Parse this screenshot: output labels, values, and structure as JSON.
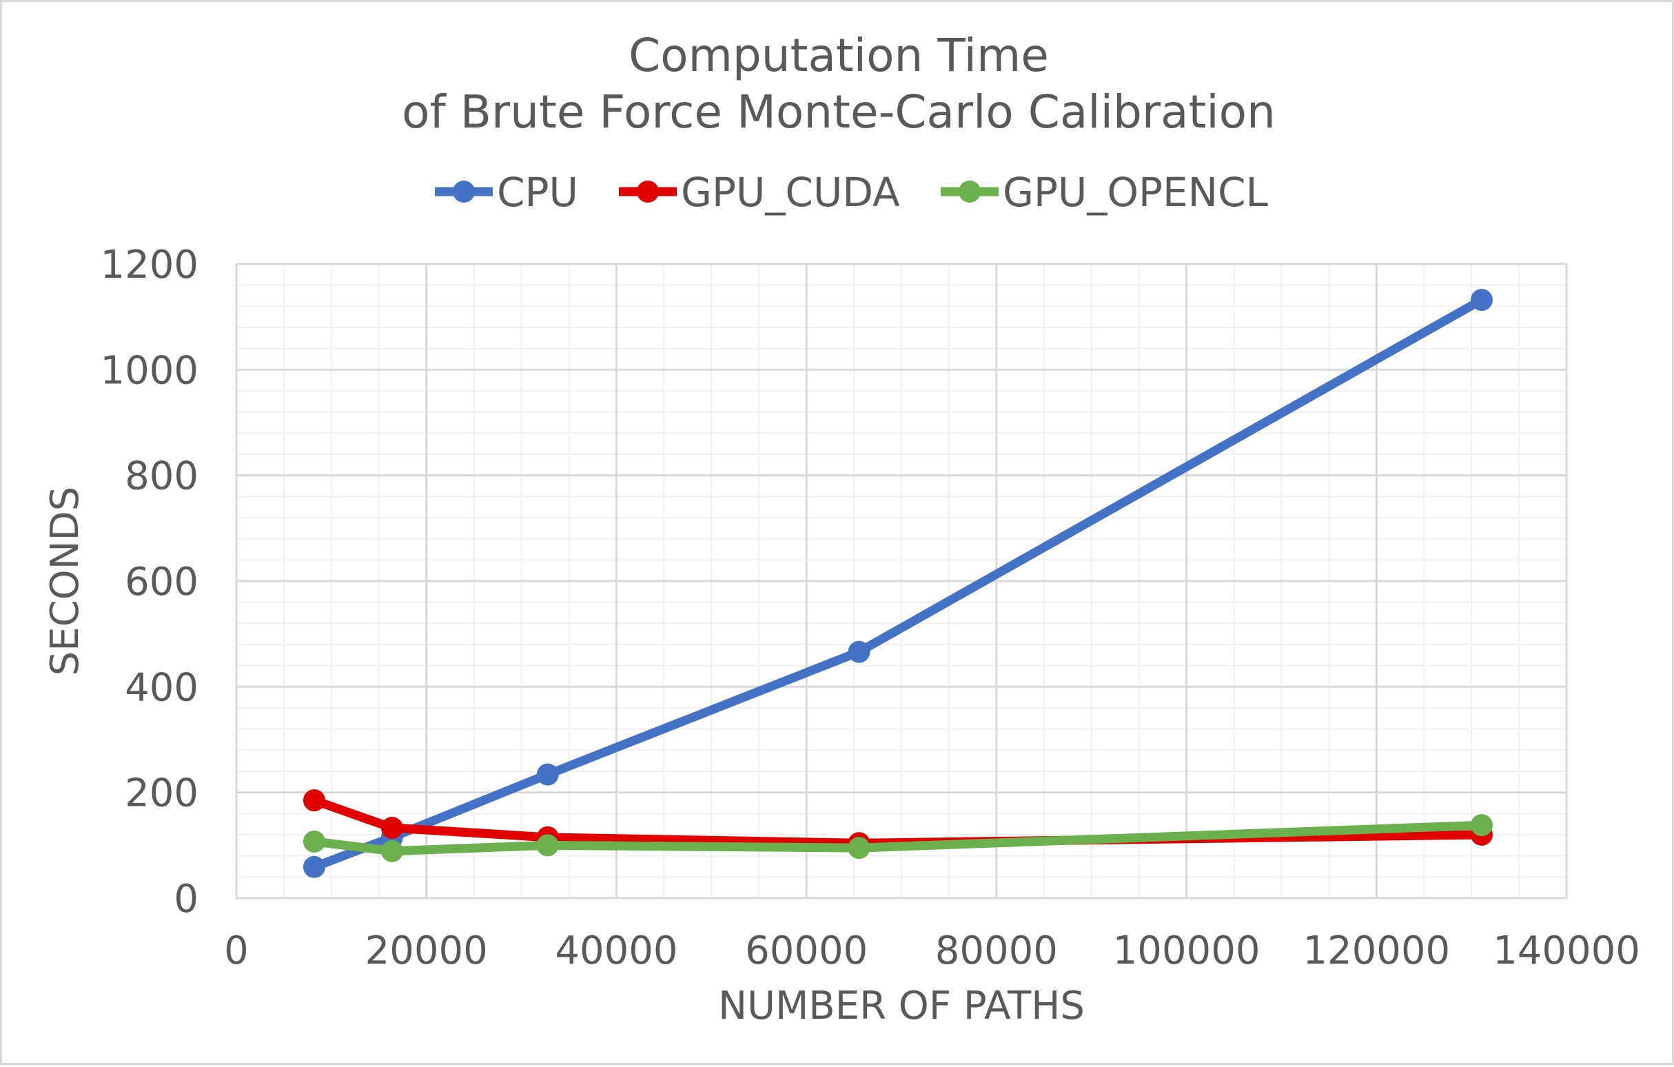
{
  "chart_data": {
    "type": "line",
    "title": [
      "Computation Time",
      "of Brute Force Monte-Carlo Calibration"
    ],
    "xlabel": "NUMBER OF PATHS",
    "ylabel": "SECONDS",
    "xlim": [
      0,
      140000
    ],
    "ylim": [
      0,
      1200
    ],
    "x_major_step": 20000,
    "y_major_step": 200,
    "x_minor_step": 5000,
    "y_minor_step": 40,
    "grid": true,
    "legend_position": "top",
    "series": [
      {
        "name": "CPU",
        "color": "#4472c4",
        "x": [
          8192,
          16384,
          32768,
          65536,
          131072
        ],
        "y": [
          59,
          115,
          234,
          466,
          1132
        ]
      },
      {
        "name": "GPU_CUDA",
        "color": "#e00000",
        "x": [
          8192,
          16384,
          32768,
          65536,
          131072
        ],
        "y": [
          185,
          133,
          115,
          104,
          120
        ]
      },
      {
        "name": "GPU_OPENCL",
        "color": "#6ab04c",
        "x": [
          8192,
          16384,
          32768,
          65536,
          131072
        ],
        "y": [
          107,
          89,
          100,
          95,
          138
        ]
      }
    ]
  }
}
